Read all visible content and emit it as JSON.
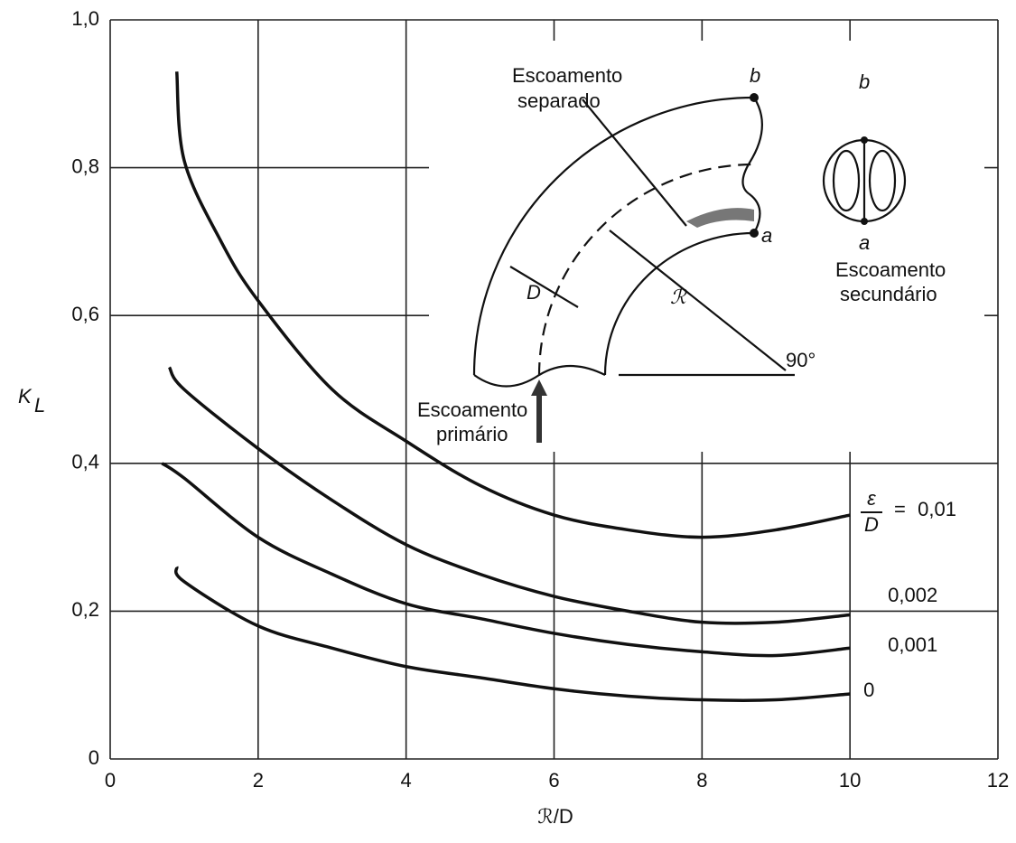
{
  "chart_data": {
    "type": "line",
    "xlabel": "ℛ/D",
    "ylabel": {
      "main": "K",
      "sub": "L"
    },
    "xlim": [
      0,
      12
    ],
    "ylim": [
      0,
      1.0
    ],
    "xticks": [
      0,
      2,
      4,
      6,
      8,
      10,
      12
    ],
    "yticks": [
      0,
      {
        "value": 0.2,
        "label": "0,2"
      },
      {
        "value": 0.4,
        "label": "0,4"
      },
      {
        "value": 0.6,
        "label": "0,6"
      },
      {
        "value": 0.8,
        "label": "0,8"
      },
      {
        "value": 1.0,
        "label": "1,0"
      }
    ],
    "grid": true,
    "color": "#111",
    "legend_prefix": {
      "numerator": "ε",
      "denominator": "D",
      "sign": "="
    },
    "series": [
      {
        "name": "0,01",
        "x": [
          0.9,
          1,
          1.5,
          2,
          3,
          4,
          5,
          6,
          7,
          8,
          9,
          10
        ],
        "values": [
          0.93,
          0.81,
          0.7,
          0.62,
          0.5,
          0.43,
          0.37,
          0.33,
          0.31,
          0.3,
          0.31,
          0.33
        ]
      },
      {
        "name": "0,002",
        "x": [
          0.8,
          1,
          2,
          3,
          4,
          5,
          6,
          7,
          8,
          9,
          10
        ],
        "values": [
          0.53,
          0.5,
          0.42,
          0.35,
          0.29,
          0.25,
          0.22,
          0.2,
          0.185,
          0.185,
          0.195
        ]
      },
      {
        "name": "0,001",
        "x": [
          0.7,
          1,
          2,
          3,
          4,
          5,
          6,
          7,
          8,
          9,
          10
        ],
        "values": [
          0.4,
          0.38,
          0.3,
          0.25,
          0.21,
          0.19,
          0.17,
          0.155,
          0.145,
          0.14,
          0.15
        ]
      },
      {
        "name": "0",
        "x": [
          0.9,
          1,
          2,
          3,
          4,
          5,
          6,
          7,
          8,
          9,
          10
        ],
        "values": [
          0.26,
          0.24,
          0.18,
          0.15,
          0.125,
          0.11,
          0.095,
          0.085,
          0.08,
          0.08,
          0.088
        ]
      }
    ],
    "diagram": {
      "separated": [
        "Escoamento",
        "separado"
      ],
      "primary": [
        "Escoamento",
        "primário"
      ],
      "secondary": [
        "Escoamento",
        "secundário"
      ],
      "point_b": "b",
      "point_a": "a",
      "diameter": "D",
      "radius": "ℛ",
      "angle": "90°",
      "circle_b": "b",
      "circle_a": "a"
    }
  }
}
